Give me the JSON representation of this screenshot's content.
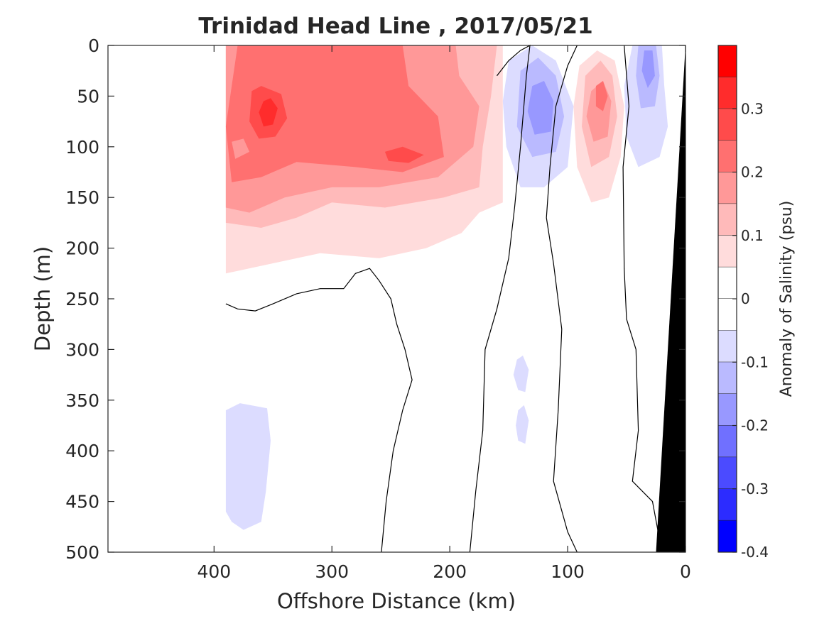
{
  "chart_data": {
    "type": "filled-contour",
    "title": "Trinidad Head Line , 2017/05/21",
    "xlabel": "Offshore Distance (km)",
    "ylabel": "Depth (m)",
    "xlim": [
      490,
      0
    ],
    "ylim": [
      0,
      500
    ],
    "x_ticks": [
      400,
      300,
      200,
      100,
      0
    ],
    "y_ticks": [
      0,
      50,
      100,
      150,
      200,
      250,
      300,
      350,
      400,
      450,
      500
    ],
    "colorbar": {
      "label": "Anomaly of Salinity (psu)",
      "range": [
        -0.4,
        0.4
      ],
      "ticks": [
        0.3,
        0.2,
        0.1,
        0,
        -0.1,
        -0.2,
        -0.3,
        -0.4
      ],
      "levels": [
        {
          "min": 0.35,
          "max": 0.4,
          "color": "#ff0000"
        },
        {
          "min": 0.3,
          "max": 0.35,
          "color": "#ff2c2c"
        },
        {
          "min": 0.25,
          "max": 0.3,
          "color": "#ff4b4b"
        },
        {
          "min": 0.2,
          "max": 0.25,
          "color": "#ff7070"
        },
        {
          "min": 0.15,
          "max": 0.2,
          "color": "#ff9898"
        },
        {
          "min": 0.1,
          "max": 0.15,
          "color": "#ffbaba"
        },
        {
          "min": 0.05,
          "max": 0.1,
          "color": "#ffdcdc"
        },
        {
          "min": 0.0,
          "max": 0.05,
          "color": "#ffffff"
        },
        {
          "min": -0.05,
          "max": 0.0,
          "color": "#ffffff"
        },
        {
          "min": -0.1,
          "max": -0.05,
          "color": "#dcdcff"
        },
        {
          "min": -0.15,
          "max": -0.1,
          "color": "#babaff"
        },
        {
          "min": -0.2,
          "max": -0.15,
          "color": "#9898ff"
        },
        {
          "min": -0.25,
          "max": -0.2,
          "color": "#7070ff"
        },
        {
          "min": -0.3,
          "max": -0.25,
          "color": "#4b4bff"
        },
        {
          "min": -0.35,
          "max": -0.3,
          "color": "#2c2cff"
        },
        {
          "min": -0.4,
          "max": -0.35,
          "color": "#0000ff"
        }
      ]
    },
    "regions": [
      {
        "name": "offshore-upper-positive-0.05",
        "level": 0.05,
        "color": "#ffdcdc",
        "points": [
          [
            390,
            0
          ],
          [
            155,
            0
          ],
          [
            155,
            155
          ],
          [
            175,
            165
          ],
          [
            190,
            185
          ],
          [
            220,
            200
          ],
          [
            260,
            210
          ],
          [
            310,
            205
          ],
          [
            350,
            215
          ],
          [
            390,
            225
          ]
        ]
      },
      {
        "name": "offshore-upper-positive-0.10",
        "level": 0.1,
        "color": "#ffbaba",
        "points": [
          [
            390,
            0
          ],
          [
            160,
            0
          ],
          [
            165,
            50
          ],
          [
            172,
            100
          ],
          [
            175,
            140
          ],
          [
            205,
            150
          ],
          [
            255,
            160
          ],
          [
            300,
            155
          ],
          [
            330,
            170
          ],
          [
            360,
            180
          ],
          [
            390,
            175
          ]
        ]
      },
      {
        "name": "offshore-upper-positive-0.15",
        "level": 0.15,
        "color": "#ff9898",
        "points": [
          [
            390,
            0
          ],
          [
            195,
            0
          ],
          [
            192,
            30
          ],
          [
            175,
            60
          ],
          [
            180,
            100
          ],
          [
            210,
            130
          ],
          [
            260,
            140
          ],
          [
            300,
            140
          ],
          [
            340,
            150
          ],
          [
            370,
            165
          ],
          [
            390,
            160
          ]
        ]
      },
      {
        "name": "offshore-upper-positive-0.20",
        "level": 0.2,
        "color": "#ff7070",
        "points": [
          [
            380,
            0
          ],
          [
            240,
            0
          ],
          [
            235,
            40
          ],
          [
            210,
            70
          ],
          [
            205,
            110
          ],
          [
            240,
            125
          ],
          [
            280,
            120
          ],
          [
            330,
            115
          ],
          [
            360,
            130
          ],
          [
            385,
            135
          ],
          [
            390,
            80
          ]
        ]
      },
      {
        "name": "offshore-upper-positive-0.25",
        "level": 0.25,
        "color": "#ff4b4b",
        "points": [
          [
            368,
            45
          ],
          [
            360,
            40
          ],
          [
            343,
            48
          ],
          [
            338,
            72
          ],
          [
            348,
            90
          ],
          [
            362,
            92
          ],
          [
            370,
            75
          ]
        ]
      },
      {
        "name": "offshore-upper-positive-0.25b",
        "level": 0.25,
        "color": "#ff4b4b",
        "points": [
          [
            255,
            105
          ],
          [
            240,
            100
          ],
          [
            222,
            108
          ],
          [
            235,
            116
          ],
          [
            252,
            114
          ]
        ]
      },
      {
        "name": "offshore-upper-positive-0.30",
        "level": 0.3,
        "color": "#ff2c2c",
        "points": [
          [
            358,
            55
          ],
          [
            352,
            52
          ],
          [
            346,
            62
          ],
          [
            350,
            78
          ],
          [
            358,
            80
          ],
          [
            362,
            66
          ]
        ]
      },
      {
        "name": "offshore-upper-small-low",
        "level": 0.15,
        "color": "#ff9898",
        "points": [
          [
            385,
            95
          ],
          [
            375,
            92
          ],
          [
            370,
            105
          ],
          [
            382,
            112
          ]
        ]
      },
      {
        "name": "deep-negative-patch",
        "level": -0.1,
        "color": "#dcdcff",
        "points": [
          [
            390,
            360
          ],
          [
            378,
            353
          ],
          [
            355,
            358
          ],
          [
            352,
            390
          ],
          [
            356,
            440
          ],
          [
            360,
            470
          ],
          [
            375,
            478
          ],
          [
            385,
            470
          ],
          [
            390,
            460
          ]
        ]
      },
      {
        "name": "midshelf-negative-0.05",
        "level": -0.1,
        "color": "#dcdcff",
        "points": [
          [
            150,
            15
          ],
          [
            130,
            0
          ],
          [
            110,
            15
          ],
          [
            95,
            60
          ],
          [
            100,
            120
          ],
          [
            120,
            140
          ],
          [
            140,
            140
          ],
          [
            152,
            100
          ],
          [
            155,
            55
          ]
        ]
      },
      {
        "name": "midshelf-negative-0.10",
        "level": -0.15,
        "color": "#babaff",
        "points": [
          [
            140,
            25
          ],
          [
            125,
            12
          ],
          [
            110,
            30
          ],
          [
            103,
            70
          ],
          [
            110,
            105
          ],
          [
            130,
            110
          ],
          [
            143,
            80
          ]
        ]
      },
      {
        "name": "midshelf-negative-0.15",
        "level": -0.2,
        "color": "#9898ff",
        "points": [
          [
            130,
            40
          ],
          [
            120,
            35
          ],
          [
            112,
            55
          ],
          [
            114,
            85
          ],
          [
            128,
            88
          ],
          [
            134,
            65
          ]
        ]
      },
      {
        "name": "midshelf-small-negative-1",
        "level": -0.1,
        "color": "#dcdcff",
        "points": [
          [
            143,
            310
          ],
          [
            138,
            306
          ],
          [
            133,
            320
          ],
          [
            136,
            342
          ],
          [
            142,
            340
          ],
          [
            146,
            325
          ]
        ]
      },
      {
        "name": "midshelf-small-negative-2",
        "level": -0.1,
        "color": "#dcdcff",
        "points": [
          [
            142,
            360
          ],
          [
            137,
            355
          ],
          [
            133,
            370
          ],
          [
            136,
            393
          ],
          [
            142,
            390
          ],
          [
            144,
            375
          ]
        ]
      },
      {
        "name": "inner-positive-0.05",
        "level": 0.05,
        "color": "#ffdcdc",
        "points": [
          [
            90,
            20
          ],
          [
            75,
            5
          ],
          [
            60,
            15
          ],
          [
            52,
            60
          ],
          [
            55,
            110
          ],
          [
            65,
            150
          ],
          [
            80,
            155
          ],
          [
            92,
            120
          ],
          [
            95,
            60
          ]
        ]
      },
      {
        "name": "inner-positive-0.10",
        "level": 0.1,
        "color": "#ffbaba",
        "points": [
          [
            85,
            30
          ],
          [
            72,
            15
          ],
          [
            62,
            30
          ],
          [
            58,
            70
          ],
          [
            65,
            110
          ],
          [
            80,
            120
          ],
          [
            88,
            80
          ]
        ]
      },
      {
        "name": "inner-positive-0.15",
        "level": 0.15,
        "color": "#ff9898",
        "points": [
          [
            80,
            45
          ],
          [
            70,
            35
          ],
          [
            63,
            55
          ],
          [
            66,
            90
          ],
          [
            78,
            95
          ],
          [
            84,
            70
          ]
        ]
      },
      {
        "name": "inner-positive-0.20",
        "level": 0.2,
        "color": "#ff7070",
        "points": [
          [
            76,
            40
          ],
          [
            70,
            35
          ],
          [
            66,
            50
          ],
          [
            70,
            65
          ],
          [
            76,
            60
          ]
        ]
      },
      {
        "name": "nearshore-negative-0.05",
        "level": -0.1,
        "color": "#dcdcff",
        "points": [
          [
            45,
            0
          ],
          [
            20,
            0
          ],
          [
            18,
            40
          ],
          [
            15,
            80
          ],
          [
            22,
            110
          ],
          [
            40,
            120
          ],
          [
            50,
            90
          ],
          [
            52,
            40
          ]
        ]
      },
      {
        "name": "nearshore-negative-0.10",
        "level": -0.15,
        "color": "#babaff",
        "points": [
          [
            40,
            0
          ],
          [
            25,
            0
          ],
          [
            22,
            30
          ],
          [
            26,
            60
          ],
          [
            38,
            62
          ],
          [
            42,
            30
          ]
        ]
      },
      {
        "name": "nearshore-negative-0.15",
        "level": -0.2,
        "color": "#9898ff",
        "points": [
          [
            35,
            5
          ],
          [
            28,
            5
          ],
          [
            26,
            30
          ],
          [
            32,
            42
          ],
          [
            37,
            25
          ]
        ]
      }
    ],
    "zero_contours": [
      {
        "name": "offshore-zero",
        "points": [
          [
            390,
            255
          ],
          [
            380,
            260
          ],
          [
            365,
            262
          ],
          [
            350,
            255
          ],
          [
            330,
            245
          ],
          [
            310,
            240
          ],
          [
            290,
            240
          ],
          [
            280,
            225
          ],
          [
            268,
            220
          ],
          [
            260,
            232
          ],
          [
            250,
            250
          ],
          [
            245,
            275
          ],
          [
            238,
            300
          ],
          [
            232,
            330
          ],
          [
            240,
            360
          ],
          [
            248,
            400
          ],
          [
            254,
            450
          ],
          [
            258,
            500
          ]
        ]
      },
      {
        "name": "midshelf-zero-1",
        "points": [
          [
            160,
            30
          ],
          [
            150,
            15
          ],
          [
            140,
            5
          ],
          [
            132,
            0
          ],
          [
            135,
            30
          ],
          [
            140,
            100
          ],
          [
            145,
            160
          ],
          [
            150,
            210
          ],
          [
            160,
            260
          ],
          [
            170,
            300
          ],
          [
            172,
            380
          ],
          [
            178,
            440
          ],
          [
            183,
            500
          ]
        ]
      },
      {
        "name": "midshelf-zero-2",
        "points": [
          [
            92,
            0
          ],
          [
            100,
            20
          ],
          [
            110,
            60
          ],
          [
            115,
            120
          ],
          [
            118,
            170
          ],
          [
            112,
            215
          ],
          [
            105,
            280
          ],
          [
            108,
            360
          ],
          [
            112,
            430
          ],
          [
            100,
            480
          ],
          [
            92,
            500
          ]
        ]
      },
      {
        "name": "nearshore-zero",
        "points": [
          [
            52,
            0
          ],
          [
            48,
            60
          ],
          [
            53,
            120
          ],
          [
            52,
            220
          ],
          [
            50,
            270
          ],
          [
            42,
            300
          ],
          [
            40,
            380
          ],
          [
            45,
            430
          ],
          [
            28,
            450
          ],
          [
            20,
            500
          ]
        ]
      }
    ],
    "land_mask": {
      "color": "#000000",
      "points": [
        [
          0,
          0
        ],
        [
          25,
          500
        ],
        [
          0,
          500
        ]
      ]
    }
  }
}
